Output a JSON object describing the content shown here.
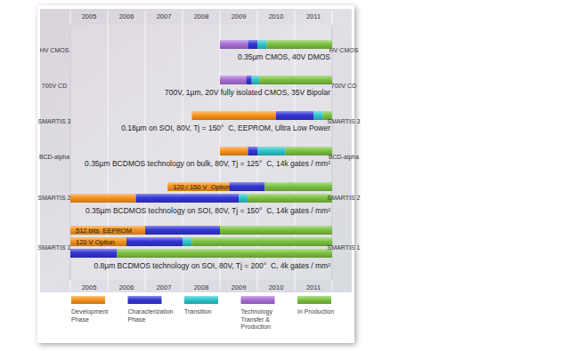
{
  "chart_data": {
    "type": "gantt",
    "xlim": [
      2005,
      2012
    ],
    "xticks": [
      {
        "value": 2005.5,
        "label": "2005"
      },
      {
        "value": 2006.5,
        "label": "2006"
      },
      {
        "value": 2007.5,
        "label": "2007"
      },
      {
        "value": 2008.5,
        "label": "2008"
      },
      {
        "value": 2009.5,
        "label": "2009"
      },
      {
        "value": 2010.5,
        "label": "2010"
      },
      {
        "value": 2011.5,
        "label": "2011"
      }
    ],
    "grid": true,
    "legend": "bottom",
    "phases": [
      {
        "name": "Development Phase",
        "color": "#f7941d"
      },
      {
        "name": "Characterization Phase",
        "color": "#3535d6"
      },
      {
        "name": "Transition",
        "color": "#2ec6cc"
      },
      {
        "name": "Technology Transfer & Production",
        "color": "#a96fd6"
      },
      {
        "name": "In Production",
        "color": "#7cc242"
      }
    ],
    "rows": [
      {
        "name": "HV CMOS",
        "description": "0.35µm CMOS, 40V DMOS",
        "bars": [
          {
            "segments": [
              {
                "phase": "Technology Transfer & Production",
                "start": 2009.0,
                "end": 2009.75
              },
              {
                "phase": "Characterization Phase",
                "start": 2009.75,
                "end": 2010.0
              },
              {
                "phase": "Transition",
                "start": 2010.0,
                "end": 2010.25
              },
              {
                "phase": "In Production",
                "start": 2010.25,
                "end": 2012
              }
            ]
          }
        ]
      },
      {
        "name": "700V CD",
        "description": "700V, 1µm, 20V fully isolated CMOS, 35V Bipolar",
        "bars": [
          {
            "segments": [
              {
                "phase": "Technology Transfer & Production",
                "start": 2009.0,
                "end": 2009.7
              },
              {
                "phase": "Characterization Phase",
                "start": 2009.7,
                "end": 2009.85
              },
              {
                "phase": "Transition",
                "start": 2009.85,
                "end": 2010.05
              },
              {
                "phase": "In Production",
                "start": 2010.05,
                "end": 2012
              }
            ]
          }
        ]
      },
      {
        "name": "SMARTIS 3",
        "description": "0.18µm on SOI, 80V, Tj = 150°  C, EEPROM, Ultra Low Power",
        "bars": [
          {
            "segments": [
              {
                "phase": "Development Phase",
                "start": 2008.25,
                "end": 2010.5
              },
              {
                "phase": "Characterization Phase",
                "start": 2010.5,
                "end": 2011.5
              },
              {
                "phase": "Transition",
                "start": 2011.5,
                "end": 2011.75
              },
              {
                "phase": "In Production",
                "start": 2011.75,
                "end": 2012
              }
            ]
          }
        ]
      },
      {
        "name": "BCD-alpha",
        "description": "0.35µm BCDMOS technology on bulk, 80V, Tj = 125°  C, 14k gates / mm²",
        "bars": [
          {
            "segments": [
              {
                "phase": "Development Phase",
                "start": 2009.0,
                "end": 2009.75
              },
              {
                "phase": "Characterization Phase",
                "start": 2009.75,
                "end": 2010.0
              },
              {
                "phase": "Transition",
                "start": 2010.0,
                "end": 2010.75
              },
              {
                "phase": "In Production",
                "start": 2010.75,
                "end": 2012
              }
            ]
          }
        ]
      },
      {
        "name": "SMARTIS 2",
        "description": "0.35µm BCDMOS technology on SOI, 80V, Tj = 150°  C, 14k gates / mm²",
        "bars": [
          {
            "label": "120 / 150 V  Option",
            "segments": [
              {
                "phase": "Development Phase",
                "start": 2007.6,
                "end": 2009.25
              },
              {
                "phase": "Characterization Phase",
                "start": 2009.25,
                "end": 2010.2
              },
              {
                "phase": "In Production",
                "start": 2010.2,
                "end": 2012
              }
            ]
          },
          {
            "segments": [
              {
                "phase": "Development Phase",
                "start": 2005.0,
                "end": 2006.75
              },
              {
                "phase": "Characterization Phase",
                "start": 2006.75,
                "end": 2009.5
              },
              {
                "phase": "Transition",
                "start": 2009.5,
                "end": 2009.75
              },
              {
                "phase": "In Production",
                "start": 2009.75,
                "end": 2012
              }
            ]
          }
        ]
      },
      {
        "name": "SMARTIS 1",
        "description": "0.8µm BCDMOS technology on SOI, 80V, Tj = 200°  C, 4k gates / mm²",
        "bars": [
          {
            "label": "512 bits  EEPROM",
            "segments": [
              {
                "phase": "Development Phase",
                "start": 2005.0,
                "end": 2007.0
              },
              {
                "phase": "Characterization Phase",
                "start": 2007.0,
                "end": 2009.0
              },
              {
                "phase": "In Production",
                "start": 2009.0,
                "end": 2012
              }
            ]
          },
          {
            "label": "120 V Option",
            "segments": [
              {
                "phase": "Development Phase",
                "start": 2005.0,
                "end": 2006.5
              },
              {
                "phase": "Characterization Phase",
                "start": 2006.5,
                "end": 2008.0
              },
              {
                "phase": "Transition",
                "start": 2008.0,
                "end": 2008.25
              },
              {
                "phase": "In Production",
                "start": 2008.25,
                "end": 2012
              }
            ]
          },
          {
            "segments": [
              {
                "phase": "Characterization Phase",
                "start": 2005.0,
                "end": 2006.25
              },
              {
                "phase": "In Production",
                "start": 2006.25,
                "end": 2012
              }
            ]
          }
        ]
      }
    ]
  }
}
